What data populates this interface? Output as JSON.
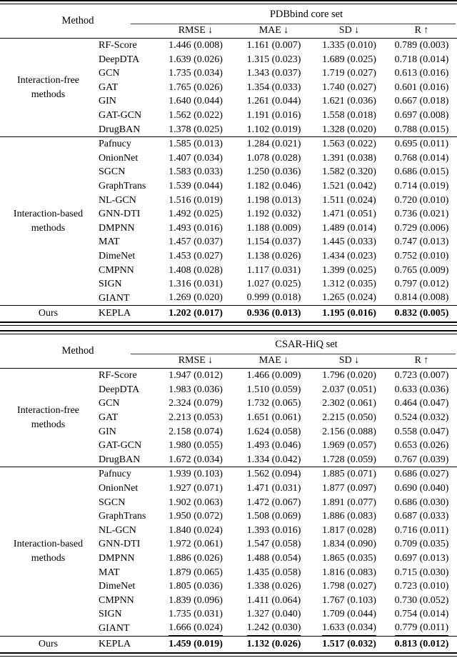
{
  "page": {
    "background": "#ffffff",
    "text_color": "#000000",
    "rule_color": "#000000"
  },
  "tables": [
    {
      "name": "pdbbind",
      "method_header": "Method",
      "dataset_header": "PDBbind core set",
      "columns": [
        "RMSE ↓",
        "MAE ↓",
        "SD ↓",
        "R ↑"
      ],
      "groups": [
        {
          "label": "Interaction-free\nmethods",
          "rows": [
            {
              "model": "RF-Score",
              "values": [
                "1.446 (0.008)",
                "1.161 (0.007)",
                "1.335 (0.010)",
                "0.789 (0.003)"
              ]
            },
            {
              "model": "DeepDTA",
              "values": [
                "1.639 (0.026)",
                "1.315 (0.023)",
                "1.689 (0.025)",
                "0.718 (0.014)"
              ]
            },
            {
              "model": "GCN",
              "values": [
                "1.735 (0.034)",
                "1.343 (0.037)",
                "1.719 (0.027)",
                "0.613 (0.016)"
              ]
            },
            {
              "model": "GAT",
              "values": [
                "1.765 (0.026)",
                "1.354 (0.033)",
                "1.740 (0.027)",
                "0.601 (0.016)"
              ]
            },
            {
              "model": "GIN",
              "values": [
                "1.640 (0.044)",
                "1.261 (0.044)",
                "1.621 (0.036)",
                "0.667 (0.018)"
              ]
            },
            {
              "model": "GAT-GCN",
              "values": [
                "1.562 (0.022)",
                "1.191 (0.016)",
                "1.558 (0.018)",
                "0.697 (0.008)"
              ]
            },
            {
              "model": "DrugBAN",
              "values": [
                "1.378 (0.025)",
                "1.102 (0.019)",
                "1.328 (0.020)",
                "0.788 (0.015)"
              ]
            }
          ]
        },
        {
          "label": "Interaction-based\nmethods",
          "rows": [
            {
              "model": "Pafnucy",
              "values": [
                "1.585 (0.013)",
                "1.284 (0.021)",
                "1.563 (0.022)",
                "0.695 (0.011)"
              ]
            },
            {
              "model": "OnionNet",
              "values": [
                "1.407 (0.034)",
                "1.078 (0.028)",
                "1.391 (0.038)",
                "0.768 (0.014)"
              ]
            },
            {
              "model": "SGCN",
              "values": [
                "1.583 (0.033)",
                "1.250 (0.036)",
                "1.582 (0.320)",
                "0.686 (0.015)"
              ]
            },
            {
              "model": "GraphTrans",
              "values": [
                "1.539 (0.044)",
                "1.182 (0.046)",
                "1.521 (0.042)",
                "0.714 (0.019)"
              ]
            },
            {
              "model": "NL-GCN",
              "values": [
                "1.516 (0.019)",
                "1.198 (0.013)",
                "1.511 (0.024)",
                "0.720 (0.010)"
              ]
            },
            {
              "model": "GNN-DTI",
              "values": [
                "1.492 (0.025)",
                "1.192 (0.032)",
                "1.471 (0.051)",
                "0.736 (0.021)"
              ]
            },
            {
              "model": "DMPNN",
              "values": [
                "1.493 (0.016)",
                "1.188 (0.009)",
                "1.489 (0.014)",
                "0.729 (0.006)"
              ]
            },
            {
              "model": "MAT",
              "values": [
                "1.457 (0.037)",
                "1.154 (0.037)",
                "1.445 (0.033)",
                "0.747 (0.013)"
              ]
            },
            {
              "model": "DimeNet",
              "values": [
                "1.453 (0.027)",
                "1.138 (0.026)",
                "1.434 (0.023)",
                "0.752 (0.010)"
              ]
            },
            {
              "model": "CMPNN",
              "values": [
                "1.408 (0.028)",
                "1.117 (0.031)",
                "1.399 (0.025)",
                "0.765 (0.009)"
              ]
            },
            {
              "model": "SIGN",
              "values": [
                "1.316 (0.031)",
                "1.027 (0.025)",
                "1.312 (0.035)",
                "0.797 (0.012)"
              ]
            },
            {
              "model": "GIANT",
              "underline": true,
              "values": [
                "1.269 (0.020)",
                "0.999 (0.018)",
                "1.265 (0.024)",
                "0.814 (0.008)"
              ]
            }
          ]
        }
      ],
      "ours_label": "Ours",
      "ours": {
        "model": "KEPLA",
        "values": [
          "1.202 (0.017)",
          "0.936 (0.013)",
          "1.195 (0.016)",
          "0.832 (0.005)"
        ]
      }
    },
    {
      "name": "csar-hiq",
      "method_header": "Method",
      "dataset_header": "CSAR-HiQ set",
      "columns": [
        "RMSE ↓",
        "MAE ↓",
        "SD ↓",
        "R ↑"
      ],
      "groups": [
        {
          "label": "Interaction-free\nmethods",
          "rows": [
            {
              "model": "RF-Score",
              "values": [
                "1.947 (0.012)",
                "1.466 (0.009)",
                "1.796 (0.020)",
                "0.723 (0.007)"
              ]
            },
            {
              "model": "DeepDTA",
              "values": [
                "1.983 (0.036)",
                "1.510 (0.059)",
                "2.037 (0.051)",
                "0.633 (0.036)"
              ]
            },
            {
              "model": "GCN",
              "values": [
                "2.324 (0.079)",
                "1.732 (0.065)",
                "2.302 (0.061)",
                "0.464 (0.047)"
              ]
            },
            {
              "model": "GAT",
              "values": [
                "2.213 (0.053)",
                "1.651 (0.061)",
                "2.215 (0.050)",
                "0.524 (0.032)"
              ]
            },
            {
              "model": "GIN",
              "values": [
                "2.158 (0.074)",
                "1.624 (0.058)",
                "2.156 (0.088)",
                "0.558 (0.047)"
              ]
            },
            {
              "model": "GAT-GCN",
              "values": [
                "1.980 (0.055)",
                "1.493 (0.046)",
                "1.969 (0.057)",
                "0.653 (0.026)"
              ]
            },
            {
              "model": "DrugBAN",
              "values": [
                "1.672 (0.034)",
                "1.334 (0.042)",
                "1.728 (0.059)",
                "0.767 (0.039)"
              ]
            }
          ]
        },
        {
          "label": "Interaction-based\nmethods",
          "rows": [
            {
              "model": "Pafnucy",
              "values": [
                "1.939 (0.103)",
                "1.562 (0.094)",
                "1.885 (0.071)",
                "0.686 (0.027)"
              ]
            },
            {
              "model": "OnionNet",
              "values": [
                "1.927 (0.071)",
                "1.471 (0.031)",
                "1.877 (0.097)",
                "0.690 (0.040)"
              ]
            },
            {
              "model": "SGCN",
              "values": [
                "1.902 (0.063)",
                "1.472 (0.067)",
                "1.891 (0.077)",
                "0.686 (0.030)"
              ]
            },
            {
              "model": "GraphTrans",
              "values": [
                "1.950 (0.072)",
                "1.508 (0.069)",
                "1.886 (0.083)",
                "0.687 (0.033)"
              ]
            },
            {
              "model": "NL-GCN",
              "values": [
                "1.840 (0.024)",
                "1.393 (0.016)",
                "1.817 (0.028)",
                "0.716 (0.011)"
              ]
            },
            {
              "model": "GNN-DTI",
              "values": [
                "1.972 (0.061)",
                "1.547 (0.058)",
                "1.834 (0.090)",
                "0.709 (0.035)"
              ]
            },
            {
              "model": "DMPNN",
              "values": [
                "1.886 (0.026)",
                "1.488 (0.054)",
                "1.865 (0.035)",
                "0.697 (0.013)"
              ]
            },
            {
              "model": "MAT",
              "values": [
                "1.879 (0.065)",
                "1.435 (0.058)",
                "1.816 (0.083)",
                "0.715 (0.030)"
              ]
            },
            {
              "model": "DimeNet",
              "values": [
                "1.805 (0.036)",
                "1.338 (0.026)",
                "1.798 (0.027)",
                "0.723 (0.010)"
              ]
            },
            {
              "model": "CMPNN",
              "values": [
                "1.839 (0.096)",
                "1.411 (0.064)",
                "1.767 (0.103)",
                "0.730 (0.052)"
              ]
            },
            {
              "model": "SIGN",
              "values": [
                "1.735 (0.031)",
                "1.327 (0.040)",
                "1.709 (0.044)",
                "0.754 (0.014)"
              ]
            },
            {
              "model": "GIANT",
              "underline": true,
              "values": [
                "1.666 (0.024)",
                "1.242 (0.030)",
                "1.633 (0.034)",
                "0.779 (0.011)"
              ]
            }
          ]
        }
      ],
      "ours_label": "Ours",
      "ours": {
        "model": "KEPLA",
        "values": [
          "1.459 (0.019)",
          "1.132 (0.026)",
          "1.517 (0.032)",
          "0.813 (0.012)"
        ]
      }
    }
  ]
}
